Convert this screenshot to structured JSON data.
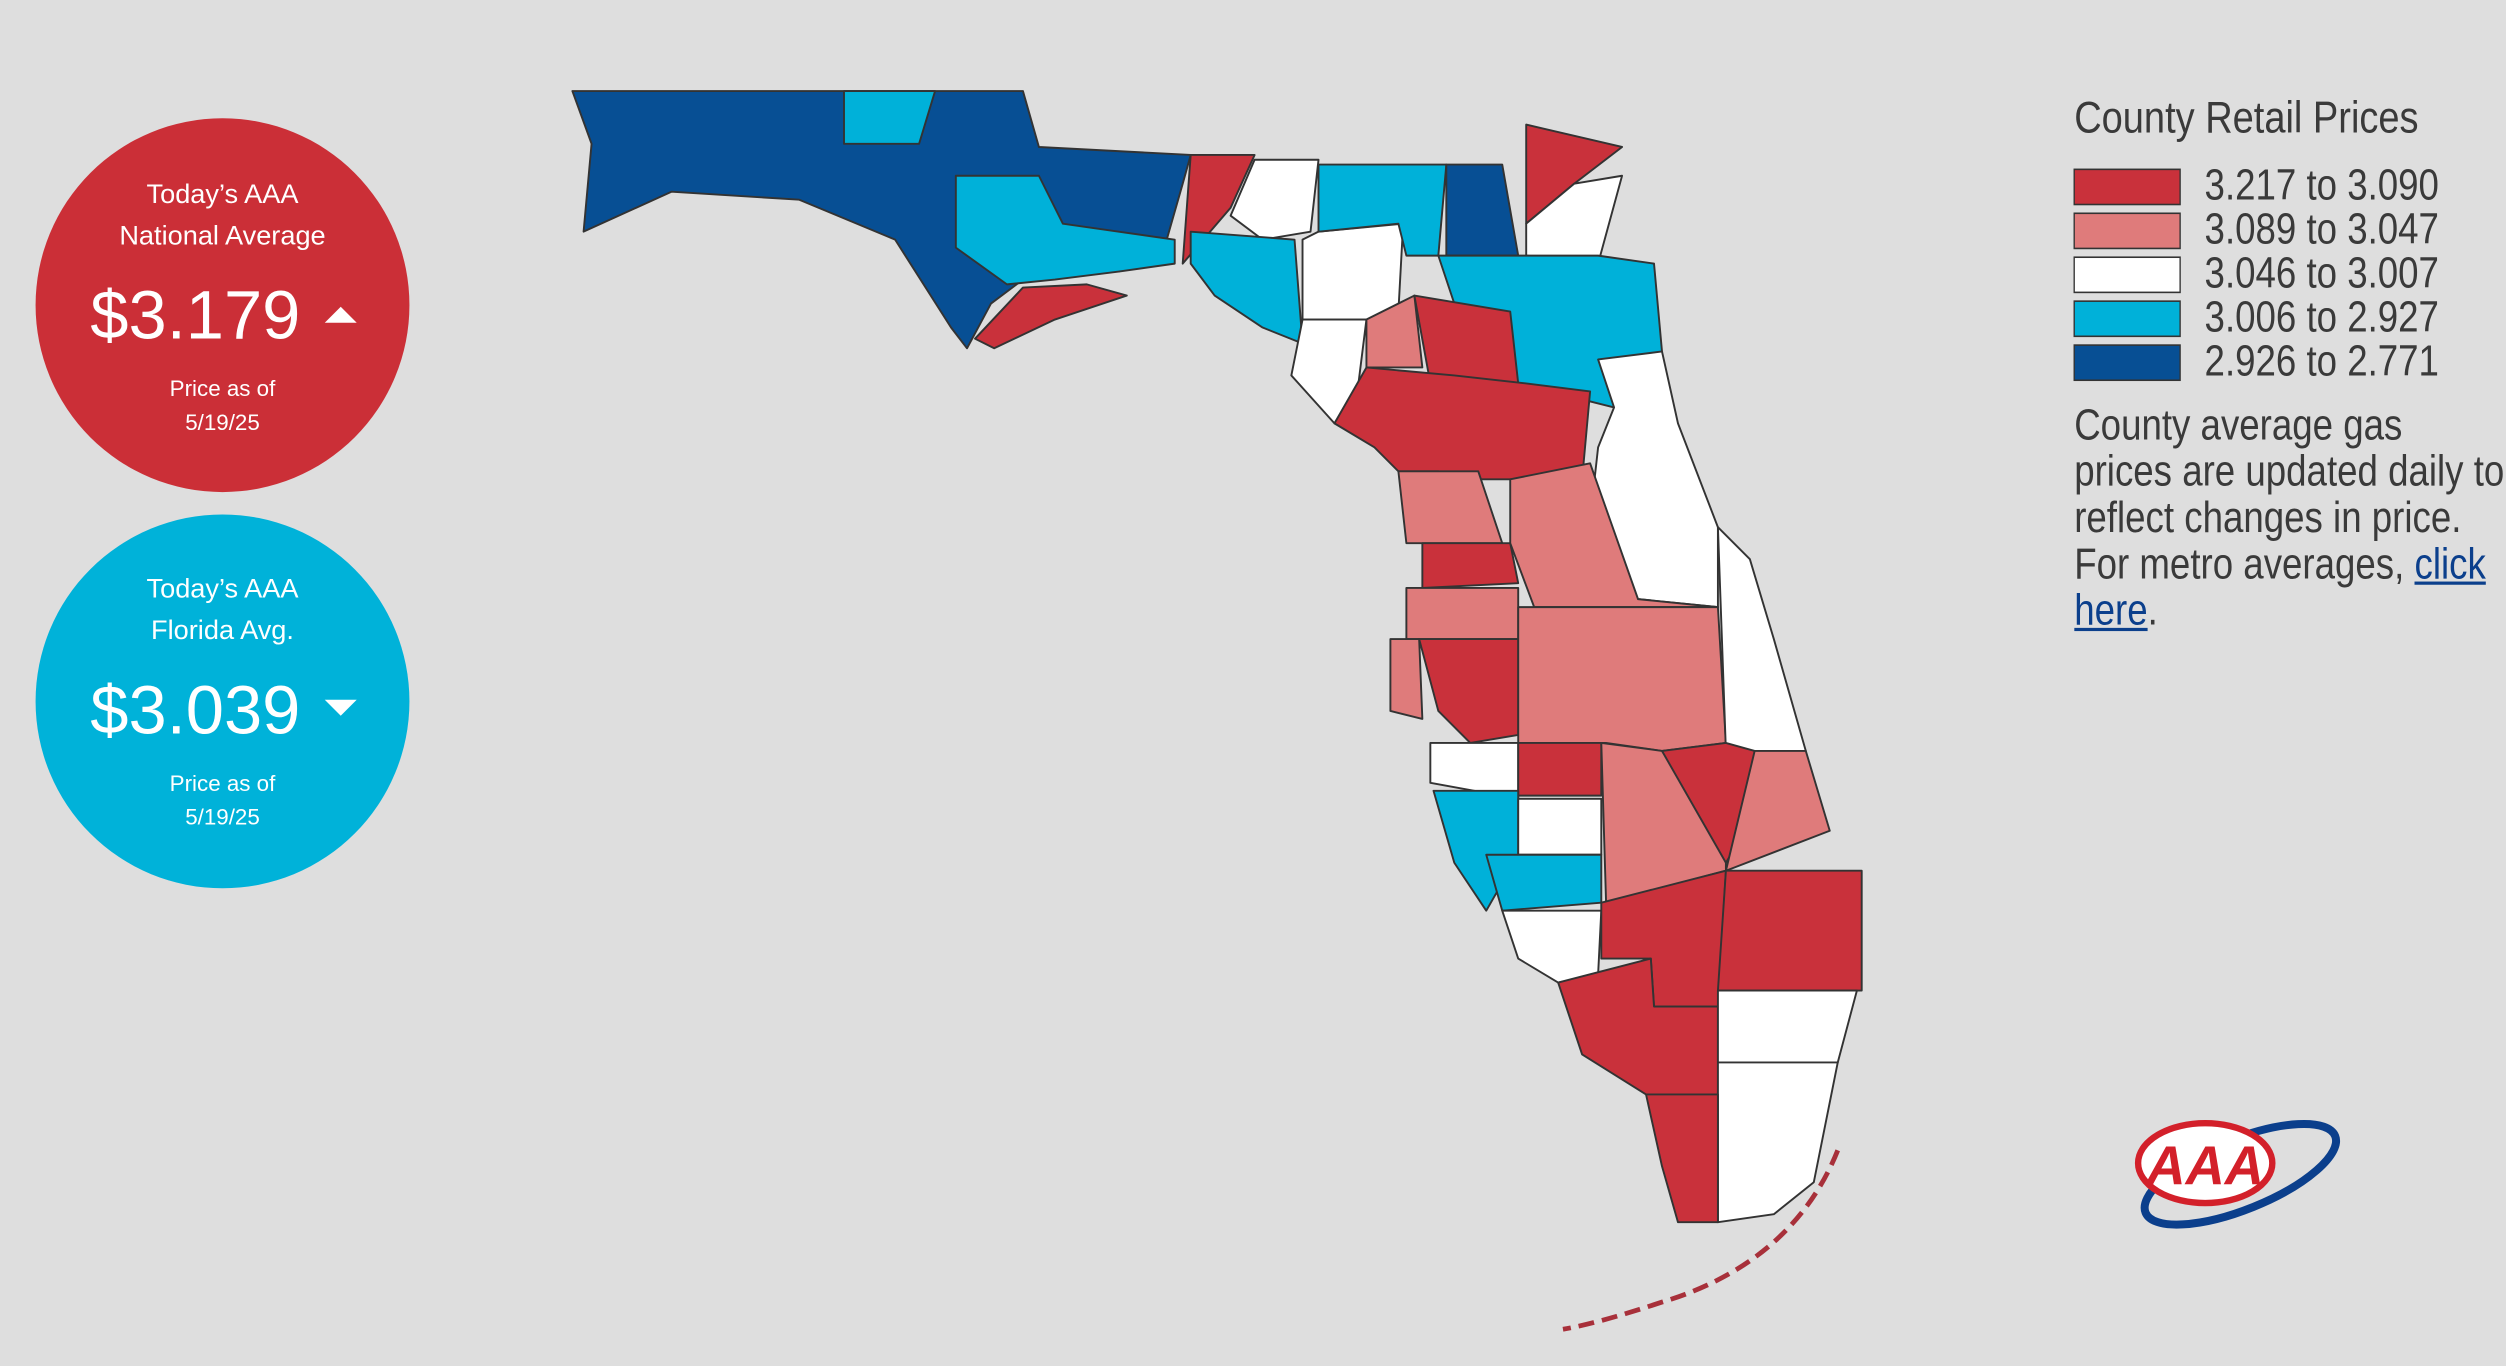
{
  "national": {
    "label_line1": "Today’s AAA",
    "label_line2": "National Average",
    "price": "$3.179",
    "date_label": "Price as of",
    "date": "5/19/25"
  },
  "florida": {
    "label_line1": "Today’s AAA",
    "label_line2": "Florida Avg.",
    "price": "$3.039",
    "date_label": "Price as of",
    "date": "5/19/25"
  },
  "legend": {
    "title": "County Retail Prices",
    "items": [
      {
        "label": "3.217 to 3.090",
        "color": "#c9313b"
      },
      {
        "label": "3.089 to 3.047",
        "color": "#df7b7b"
      },
      {
        "label": "3.046 to 3.007",
        "color": "#ffffff"
      },
      {
        "label": "3.006 to 2.927",
        "color": "#00b1d9"
      },
      {
        "label": "2.926 to 2.771",
        "color": "#074f94"
      }
    ]
  },
  "note": {
    "text": "County average gas prices are updated daily to reflect changes in price. For metro averages, ",
    "link": "click here",
    "end": "."
  },
  "logo": "AAA"
}
